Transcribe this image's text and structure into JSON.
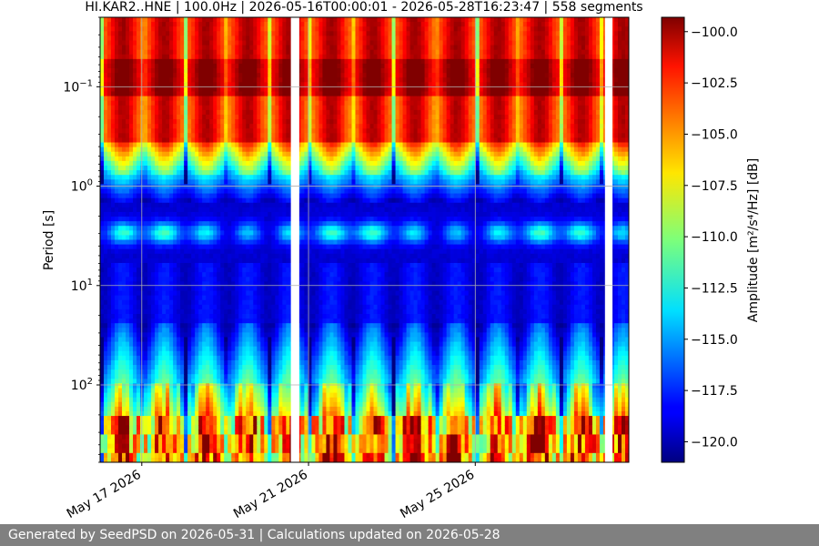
{
  "footer": {
    "text": "Generated by SeedPSD on 2026-05-31 | Calculations updated on 2026-05-28",
    "background": "#808080"
  },
  "chart_data": {
    "type": "heatmap",
    "title": "HI.KAR2..HNE | 100.0Hz | 2026-05-16T00:00:01 - 2026-05-28T16:23:47 | 558 segments",
    "xlabel": "",
    "ylabel": "Period [s]",
    "colorbar_label": "Amplitude [m²/s⁴/Hz] [dB]",
    "colormap": "jet",
    "x_ticks": [
      "May 17 2026",
      "May 21 2026",
      "May 25 2026"
    ],
    "x_range": [
      "2026-05-16",
      "2026-05-28T16:23:47"
    ],
    "y_scale": "log",
    "y_inverted": true,
    "y_range": [
      0.02,
      600
    ],
    "y_ticks": [
      {
        "value": 0.1,
        "label_base": "10",
        "label_exp": "−1"
      },
      {
        "value": 1,
        "label_base": "10",
        "label_exp": "0"
      },
      {
        "value": 10,
        "label_base": "10",
        "label_exp": "1"
      },
      {
        "value": 100,
        "label_base": "10",
        "label_exp": "2"
      }
    ],
    "color_range": [
      -121,
      -99.3
    ],
    "colorbar_ticks": [
      "−100.0",
      "−102.5",
      "−105.0",
      "−107.5",
      "−110.0",
      "−112.5",
      "−115.0",
      "−117.5",
      "−120.0"
    ],
    "colorbar_tick_values": [
      -100,
      -102.5,
      -105,
      -107.5,
      -110,
      -112.5,
      -115,
      -117.5,
      -120
    ],
    "grid": true,
    "data_gaps": [
      [
        "2026-05-20T13:50",
        "2026-05-20T18:40"
      ],
      [
        "2026-05-28T02:40",
        "2026-05-28T07:00"
      ]
    ],
    "segments": 558
  }
}
